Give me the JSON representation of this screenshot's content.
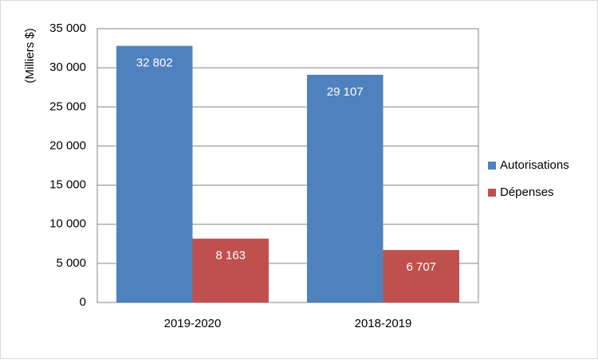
{
  "chart_data": {
    "type": "bar",
    "y_label": "(Milliers $)",
    "categories": [
      "2019-2020",
      "2018-2019"
    ],
    "series": [
      {
        "name": "Autorisations",
        "color": "#4f81bd",
        "values": [
          32802,
          29107
        ],
        "value_labels": [
          "32 802",
          "29 107"
        ]
      },
      {
        "name": "Dépenses",
        "color": "#c0504d",
        "values": [
          8163,
          6707
        ],
        "value_labels": [
          "8 163",
          "6 707"
        ]
      }
    ],
    "ylim": [
      0,
      35000
    ],
    "yticks": [
      0,
      {
        "value": 5000,
        "label": "5 000"
      },
      {
        "value": 10000,
        "label": "10 000"
      },
      {
        "value": 15000,
        "label": "15 000"
      },
      {
        "value": 20000,
        "label": "20 000"
      },
      {
        "value": 25000,
        "label": "25 000"
      },
      {
        "value": 30000,
        "label": "30 000"
      },
      {
        "value": 35000,
        "label": "35 000"
      }
    ],
    "grid": true,
    "legend": "right"
  }
}
